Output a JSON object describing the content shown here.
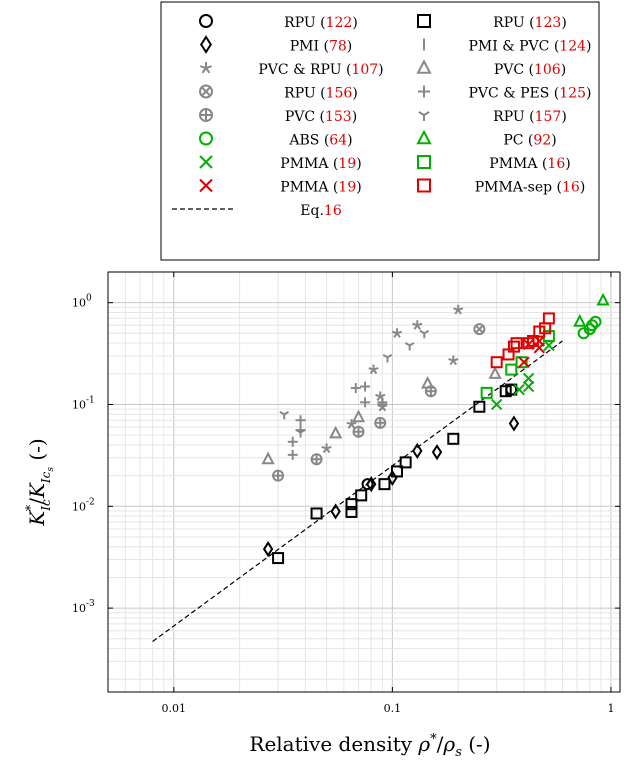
{
  "chart_data": {
    "type": "scatter",
    "title": "",
    "xlabel": "Relative density ρ*/ρs (-)",
    "ylabel": "K*Ic/KIcs (-)",
    "xscale": "log",
    "yscale": "log",
    "xlim": [
      0.005,
      1.1
    ],
    "ylim": [
      0.00015,
      2.0
    ],
    "xticks": [
      {
        "value": 0.01,
        "label": "0.01"
      },
      {
        "value": 0.1,
        "label": "0.1"
      },
      {
        "value": 1,
        "label": "1"
      }
    ],
    "yticks": [
      {
        "value": 0.001,
        "label": "10^-3"
      },
      {
        "value": 0.01,
        "label": "10^-2"
      },
      {
        "value": 0.1,
        "label": "10^-1"
      },
      {
        "value": 1,
        "label": "10^0"
      }
    ],
    "grid": true,
    "legend_position": "top",
    "series": [
      {
        "name": "RPU",
        "ref": "122",
        "marker": "circle",
        "color": "#000000",
        "points": [
          [
            0.077,
            0.0165
          ],
          [
            0.35,
            0.14
          ]
        ]
      },
      {
        "name": "RPU",
        "ref": "123",
        "marker": "square",
        "color": "#000000",
        "points": [
          [
            0.03,
            0.0031
          ],
          [
            0.045,
            0.0085
          ],
          [
            0.065,
            0.0088
          ],
          [
            0.065,
            0.0105
          ],
          [
            0.072,
            0.0128
          ],
          [
            0.092,
            0.0165
          ],
          [
            0.105,
            0.022
          ],
          [
            0.115,
            0.027
          ],
          [
            0.19,
            0.046
          ],
          [
            0.25,
            0.095
          ],
          [
            0.33,
            0.135
          ],
          [
            0.35,
            0.14
          ]
        ]
      },
      {
        "name": "PMI",
        "ref": "78",
        "marker": "diamond",
        "color": "#000000",
        "points": [
          [
            0.027,
            0.0038
          ],
          [
            0.055,
            0.0089
          ],
          [
            0.08,
            0.0165
          ],
          [
            0.1,
            0.019
          ],
          [
            0.13,
            0.035
          ],
          [
            0.16,
            0.034
          ],
          [
            0.36,
            0.065
          ]
        ]
      },
      {
        "name": "PMI & PVC",
        "ref": "124",
        "marker": "vbar",
        "color": "#888888",
        "points": []
      },
      {
        "name": "PVC & RPU",
        "ref": "107",
        "marker": "star",
        "color": "#888888",
        "points": [
          [
            0.05,
            0.037
          ],
          [
            0.065,
            0.064
          ],
          [
            0.082,
            0.22
          ],
          [
            0.088,
            0.12
          ],
          [
            0.09,
            0.095
          ],
          [
            0.105,
            0.5
          ],
          [
            0.13,
            0.6
          ],
          [
            0.19,
            0.27
          ],
          [
            0.2,
            0.85
          ]
        ]
      },
      {
        "name": "PVC",
        "ref": "106",
        "marker": "triangle",
        "color": "#888888",
        "points": [
          [
            0.027,
            0.029
          ],
          [
            0.055,
            0.052
          ],
          [
            0.07,
            0.075
          ],
          [
            0.145,
            0.16
          ],
          [
            0.295,
            0.2
          ]
        ]
      },
      {
        "name": "RPU",
        "ref": "156",
        "marker": "circle-x",
        "color": "#888888",
        "points": [
          [
            0.25,
            0.55
          ]
        ]
      },
      {
        "name": "PVC & PES",
        "ref": "125",
        "marker": "plus",
        "color": "#888888",
        "points": [
          [
            0.035,
            0.032
          ],
          [
            0.035,
            0.043
          ],
          [
            0.038,
            0.07
          ],
          [
            0.038,
            0.056
          ],
          [
            0.068,
            0.145
          ],
          [
            0.075,
            0.15
          ],
          [
            0.075,
            0.105
          ],
          [
            0.09,
            0.1
          ],
          [
            0.09,
            0.105
          ]
        ]
      },
      {
        "name": "PVC",
        "ref": "153",
        "marker": "circle-plus",
        "color": "#888888",
        "points": [
          [
            0.03,
            0.02
          ],
          [
            0.045,
            0.029
          ],
          [
            0.07,
            0.054
          ],
          [
            0.088,
            0.066
          ],
          [
            0.15,
            0.135
          ]
        ]
      },
      {
        "name": "RPU",
        "ref": "157",
        "marker": "tri-star",
        "color": "#888888",
        "points": [
          [
            0.032,
            0.08
          ],
          [
            0.038,
            0.053
          ],
          [
            0.095,
            0.29
          ],
          [
            0.12,
            0.38
          ],
          [
            0.14,
            0.5
          ]
        ]
      },
      {
        "name": "ABS",
        "ref": "64",
        "marker": "circle",
        "color": "#00b000",
        "points": [
          [
            0.75,
            0.5
          ],
          [
            0.8,
            0.55
          ],
          [
            0.82,
            0.6
          ],
          [
            0.85,
            0.65
          ]
        ]
      },
      {
        "name": "PC",
        "ref": "92",
        "marker": "triangle",
        "color": "#00b000",
        "points": [
          [
            0.72,
            0.65
          ],
          [
            0.92,
            1.05
          ]
        ]
      },
      {
        "name": "PMMA",
        "ref": "19",
        "marker": "x",
        "color": "#00b000",
        "points": [
          [
            0.3,
            0.1
          ],
          [
            0.38,
            0.14
          ],
          [
            0.42,
            0.15
          ],
          [
            0.42,
            0.18
          ],
          [
            0.52,
            0.38
          ]
        ]
      },
      {
        "name": "PMMA",
        "ref": "16",
        "marker": "square",
        "color": "#00b000",
        "points": [
          [
            0.27,
            0.13
          ],
          [
            0.35,
            0.22
          ],
          [
            0.39,
            0.26
          ],
          [
            0.52,
            0.47
          ]
        ]
      },
      {
        "name": "PMMA",
        "ref": "19",
        "marker": "x",
        "color": "#e00000",
        "points": [
          [
            0.4,
            0.26
          ],
          [
            0.42,
            0.39
          ],
          [
            0.47,
            0.36
          ],
          [
            0.47,
            0.42
          ]
        ]
      },
      {
        "name": "PMMA-sep",
        "ref": "16",
        "marker": "square",
        "color": "#e00000",
        "points": [
          [
            0.3,
            0.26
          ],
          [
            0.34,
            0.31
          ],
          [
            0.36,
            0.37
          ],
          [
            0.37,
            0.4
          ],
          [
            0.42,
            0.4
          ],
          [
            0.44,
            0.42
          ],
          [
            0.47,
            0.52
          ],
          [
            0.5,
            0.56
          ],
          [
            0.52,
            0.7
          ]
        ]
      }
    ],
    "fit_line": {
      "name": "Eq.",
      "ref": "16",
      "style": "dashed",
      "color": "#000000",
      "points": [
        [
          0.008,
          0.00047
        ],
        [
          0.6,
          0.42
        ]
      ]
    }
  }
}
